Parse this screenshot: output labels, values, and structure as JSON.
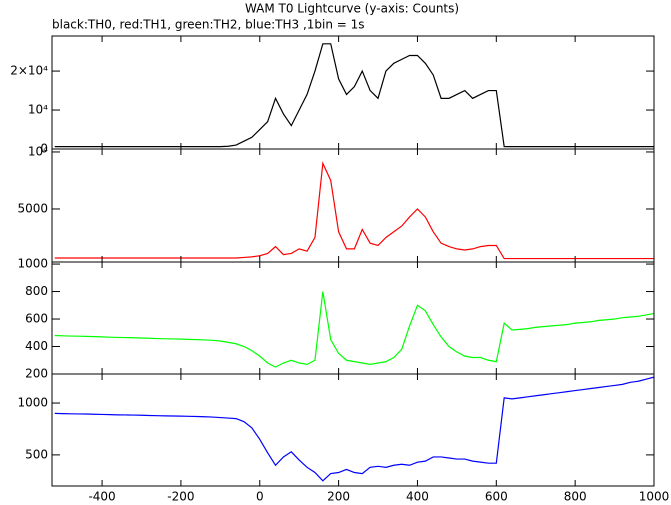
{
  "chart_data": {
    "type": "line",
    "title": "WAM T0 Lightcurve (y-axis: Counts)",
    "subtitle": "black:TH0, red:TH1, green:TH2, blue:TH3 ,1bin = 1s",
    "x": [
      -520,
      -500,
      -480,
      -460,
      -440,
      -420,
      -400,
      -380,
      -360,
      -340,
      -320,
      -300,
      -280,
      -260,
      -240,
      -220,
      -200,
      -180,
      -160,
      -140,
      -120,
      -100,
      -80,
      -60,
      -40,
      -20,
      0,
      20,
      40,
      60,
      80,
      100,
      120,
      140,
      160,
      180,
      200,
      220,
      240,
      260,
      280,
      300,
      320,
      340,
      360,
      380,
      400,
      420,
      440,
      460,
      480,
      500,
      520,
      540,
      560,
      580,
      600,
      620,
      640,
      660,
      680,
      700,
      720,
      740,
      760,
      780,
      800,
      820,
      840,
      860,
      880,
      900,
      920,
      940,
      960,
      980,
      1000
    ],
    "xlim": [
      -527,
      1000
    ],
    "xticks": [
      -400,
      -200,
      0,
      200,
      400,
      600,
      800,
      1000
    ],
    "panels": [
      {
        "series": [
          {
            "color": "#000000",
            "values": [
              600,
              600,
              600,
              600,
              600,
              600,
              600,
              600,
              600,
              600,
              600,
              600,
              600,
              600,
              600,
              600,
              600,
              600,
              600,
              600,
              600,
              600,
              700,
              1000,
              2000,
              3000,
              5000,
              7000,
              13000,
              9000,
              6000,
              10000,
              14000,
              20000,
              27000,
              27000,
              18000,
              14000,
              16000,
              20000,
              15000,
              13000,
              20000,
              22000,
              23000,
              24000,
              24000,
              22000,
              19000,
              13000,
              13000,
              14000,
              15000,
              13000,
              14000,
              15000,
              15000,
              600,
              600,
              600,
              600,
              600,
              600,
              600,
              600,
              600,
              600,
              600,
              600,
              600,
              600,
              600,
              600,
              600,
              600,
              600,
              600
            ]
          }
        ],
        "ylim": [
          0,
          29000
        ],
        "yticks": [
          0,
          {
            "value": 10000,
            "label": "10⁴"
          },
          {
            "value": 20000,
            "label": "2×10⁴"
          }
        ]
      },
      {
        "series": [
          {
            "color": "#ff0000",
            "values": [
              700,
              700,
              700,
              700,
              700,
              700,
              700,
              700,
              700,
              700,
              700,
              700,
              700,
              700,
              700,
              700,
              700,
              700,
              700,
              700,
              700,
              700,
              700,
              700,
              750,
              800,
              900,
              1100,
              1700,
              1000,
              1100,
              1500,
              1300,
              2500,
              9000,
              7500,
              3000,
              1500,
              1500,
              3200,
              2000,
              1800,
              2500,
              3000,
              3500,
              4300,
              5000,
              4300,
              3000,
              2000,
              1700,
              1500,
              1400,
              1500,
              1700,
              1800,
              1800,
              650,
              650,
              650,
              650,
              650,
              650,
              650,
              650,
              650,
              650,
              650,
              650,
              650,
              650,
              650,
              650,
              650,
              650,
              650,
              650
            ]
          }
        ],
        "ylim": [
          350,
          10260
        ],
        "yticks": [
          5000,
          {
            "value": 10000,
            "label": "10⁴"
          }
        ]
      },
      {
        "series": [
          {
            "color": "#00ff00",
            "values": [
              480,
              478,
              476,
              475,
              474,
              472,
              470,
              468,
              466,
              465,
              464,
              462,
              460,
              458,
              456,
              455,
              454,
              452,
              450,
              448,
              445,
              440,
              430,
              420,
              400,
              370,
              330,
              280,
              250,
              280,
              300,
              280,
              270,
              300,
              800,
              450,
              350,
              300,
              290,
              280,
              270,
              280,
              290,
              320,
              380,
              550,
              700,
              660,
              560,
              470,
              400,
              360,
              330,
              320,
              320,
              300,
              290,
              570,
              520,
              525,
              530,
              540,
              545,
              550,
              555,
              560,
              570,
              575,
              580,
              590,
              595,
              600,
              610,
              615,
              620,
              630,
              640
            ]
          }
        ],
        "ylim": [
          200,
          1015
        ],
        "yticks": [
          200,
          400,
          600,
          800,
          1000
        ]
      },
      {
        "series": [
          {
            "color": "#0000ff",
            "values": [
              900,
              898,
              896,
              895,
              894,
              892,
              890,
              888,
              886,
              885,
              884,
              882,
              880,
              878,
              876,
              875,
              874,
              872,
              870,
              868,
              865,
              860,
              855,
              850,
              820,
              760,
              650,
              520,
              400,
              480,
              530,
              450,
              380,
              330,
              250,
              320,
              330,
              360,
              330,
              320,
              380,
              390,
              380,
              400,
              410,
              400,
              430,
              440,
              480,
              480,
              470,
              460,
              460,
              440,
              430,
              420,
              420,
              1050,
              1040,
              1050,
              1060,
              1070,
              1080,
              1090,
              1100,
              1110,
              1120,
              1130,
              1140,
              1150,
              1160,
              1170,
              1180,
              1200,
              1210,
              1230,
              1250
            ]
          }
        ],
        "ylim": [
          200,
          1280
        ],
        "yticks": [
          500,
          1000
        ]
      }
    ]
  }
}
